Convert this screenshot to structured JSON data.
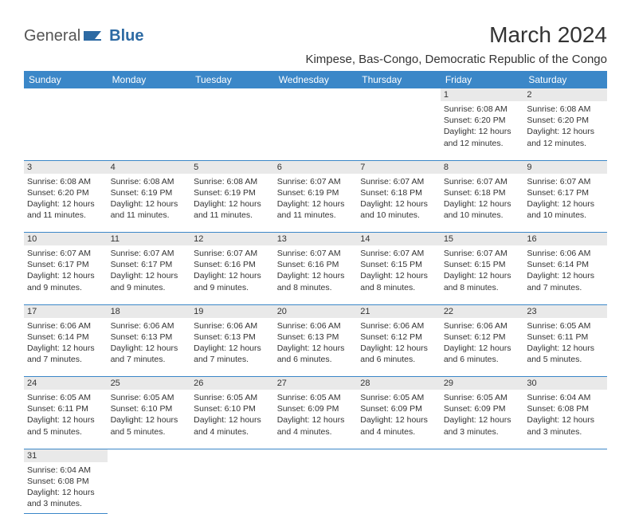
{
  "logo": {
    "text1": "General",
    "text2": "Blue"
  },
  "title": "March 2024",
  "location": "Kimpese, Bas-Congo, Democratic Republic of the Congo",
  "colors": {
    "header_bg": "#3b87c8",
    "header_text": "#ffffff",
    "daynum_bg": "#e9e9e9",
    "row_border": "#3b87c8",
    "logo_blue": "#2d6aa3"
  },
  "weekdays": [
    "Sunday",
    "Monday",
    "Tuesday",
    "Wednesday",
    "Thursday",
    "Friday",
    "Saturday"
  ],
  "weeks": [
    [
      null,
      null,
      null,
      null,
      null,
      {
        "n": "1",
        "sunrise": "6:08 AM",
        "sunset": "6:20 PM",
        "day_h": "12",
        "day_m": "12"
      },
      {
        "n": "2",
        "sunrise": "6:08 AM",
        "sunset": "6:20 PM",
        "day_h": "12",
        "day_m": "12"
      }
    ],
    [
      {
        "n": "3",
        "sunrise": "6:08 AM",
        "sunset": "6:20 PM",
        "day_h": "12",
        "day_m": "11"
      },
      {
        "n": "4",
        "sunrise": "6:08 AM",
        "sunset": "6:19 PM",
        "day_h": "12",
        "day_m": "11"
      },
      {
        "n": "5",
        "sunrise": "6:08 AM",
        "sunset": "6:19 PM",
        "day_h": "12",
        "day_m": "11"
      },
      {
        "n": "6",
        "sunrise": "6:07 AM",
        "sunset": "6:19 PM",
        "day_h": "12",
        "day_m": "11"
      },
      {
        "n": "7",
        "sunrise": "6:07 AM",
        "sunset": "6:18 PM",
        "day_h": "12",
        "day_m": "10"
      },
      {
        "n": "8",
        "sunrise": "6:07 AM",
        "sunset": "6:18 PM",
        "day_h": "12",
        "day_m": "10"
      },
      {
        "n": "9",
        "sunrise": "6:07 AM",
        "sunset": "6:17 PM",
        "day_h": "12",
        "day_m": "10"
      }
    ],
    [
      {
        "n": "10",
        "sunrise": "6:07 AM",
        "sunset": "6:17 PM",
        "day_h": "12",
        "day_m": "9"
      },
      {
        "n": "11",
        "sunrise": "6:07 AM",
        "sunset": "6:17 PM",
        "day_h": "12",
        "day_m": "9"
      },
      {
        "n": "12",
        "sunrise": "6:07 AM",
        "sunset": "6:16 PM",
        "day_h": "12",
        "day_m": "9"
      },
      {
        "n": "13",
        "sunrise": "6:07 AM",
        "sunset": "6:16 PM",
        "day_h": "12",
        "day_m": "8"
      },
      {
        "n": "14",
        "sunrise": "6:07 AM",
        "sunset": "6:15 PM",
        "day_h": "12",
        "day_m": "8"
      },
      {
        "n": "15",
        "sunrise": "6:07 AM",
        "sunset": "6:15 PM",
        "day_h": "12",
        "day_m": "8"
      },
      {
        "n": "16",
        "sunrise": "6:06 AM",
        "sunset": "6:14 PM",
        "day_h": "12",
        "day_m": "7"
      }
    ],
    [
      {
        "n": "17",
        "sunrise": "6:06 AM",
        "sunset": "6:14 PM",
        "day_h": "12",
        "day_m": "7"
      },
      {
        "n": "18",
        "sunrise": "6:06 AM",
        "sunset": "6:13 PM",
        "day_h": "12",
        "day_m": "7"
      },
      {
        "n": "19",
        "sunrise": "6:06 AM",
        "sunset": "6:13 PM",
        "day_h": "12",
        "day_m": "7"
      },
      {
        "n": "20",
        "sunrise": "6:06 AM",
        "sunset": "6:13 PM",
        "day_h": "12",
        "day_m": "6"
      },
      {
        "n": "21",
        "sunrise": "6:06 AM",
        "sunset": "6:12 PM",
        "day_h": "12",
        "day_m": "6"
      },
      {
        "n": "22",
        "sunrise": "6:06 AM",
        "sunset": "6:12 PM",
        "day_h": "12",
        "day_m": "6"
      },
      {
        "n": "23",
        "sunrise": "6:05 AM",
        "sunset": "6:11 PM",
        "day_h": "12",
        "day_m": "5"
      }
    ],
    [
      {
        "n": "24",
        "sunrise": "6:05 AM",
        "sunset": "6:11 PM",
        "day_h": "12",
        "day_m": "5"
      },
      {
        "n": "25",
        "sunrise": "6:05 AM",
        "sunset": "6:10 PM",
        "day_h": "12",
        "day_m": "5"
      },
      {
        "n": "26",
        "sunrise": "6:05 AM",
        "sunset": "6:10 PM",
        "day_h": "12",
        "day_m": "4"
      },
      {
        "n": "27",
        "sunrise": "6:05 AM",
        "sunset": "6:09 PM",
        "day_h": "12",
        "day_m": "4"
      },
      {
        "n": "28",
        "sunrise": "6:05 AM",
        "sunset": "6:09 PM",
        "day_h": "12",
        "day_m": "4"
      },
      {
        "n": "29",
        "sunrise": "6:05 AM",
        "sunset": "6:09 PM",
        "day_h": "12",
        "day_m": "3"
      },
      {
        "n": "30",
        "sunrise": "6:04 AM",
        "sunset": "6:08 PM",
        "day_h": "12",
        "day_m": "3"
      }
    ],
    [
      {
        "n": "31",
        "sunrise": "6:04 AM",
        "sunset": "6:08 PM",
        "day_h": "12",
        "day_m": "3"
      },
      null,
      null,
      null,
      null,
      null,
      null
    ]
  ],
  "labels": {
    "sunrise": "Sunrise:",
    "sunset": "Sunset:",
    "daylight": "Daylight:",
    "hours": "hours",
    "and": "and",
    "minutes": "minutes."
  }
}
